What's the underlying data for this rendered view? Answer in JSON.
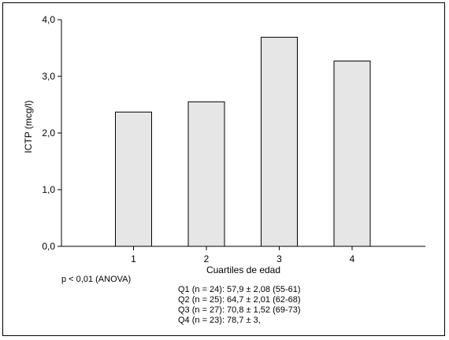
{
  "chart_data": {
    "type": "bar",
    "categories": [
      "1",
      "2",
      "3",
      "4"
    ],
    "values": [
      2.37,
      2.55,
      3.69,
      3.27
    ],
    "xlabel": "Cuartiles de edad",
    "ylabel": "ICTP (mcg/l)",
    "ylim": [
      0,
      4
    ],
    "yticks": [
      "0,0",
      "1,0",
      "2,0",
      "3,0",
      "4,0"
    ],
    "bar_fill": "#e6e6e6",
    "grid": false,
    "legend": "none"
  },
  "annotations": {
    "pvalue": "p < 0,01 (ANOVA)",
    "quartiles": [
      "Q1 (n = 24): 57,9 ± 2,08 (55-61)",
      "Q2 (n = 25): 64,7 ± 2,01 (62-68)",
      "Q3 (n = 27): 70,8 ± 1,52 (69-73)",
      "Q4 (n = 23): 78,7 ± 3,"
    ]
  }
}
